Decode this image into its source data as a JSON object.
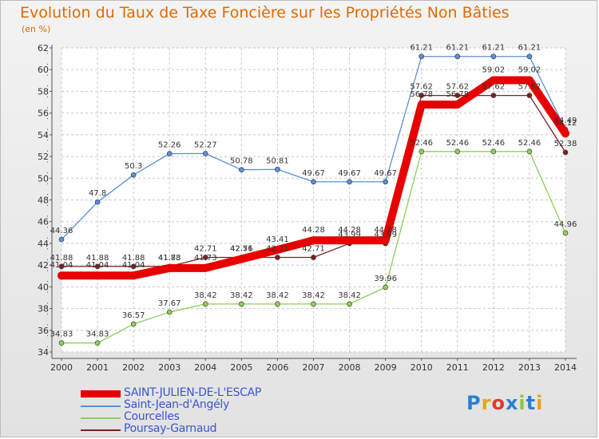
{
  "header": {
    "title": "Evolution du Taux de Taxe Foncière sur les Propriétés Non Bâties",
    "subtitle": "(en %)"
  },
  "chart_data": {
    "type": "line",
    "title": "Evolution du Taux de Taxe Foncière sur les Propriétés Non Bâties",
    "ylabel": "(en %)",
    "xlabel": "",
    "ylim": [
      34,
      62
    ],
    "yticks": [
      34,
      36,
      38,
      40,
      42,
      44,
      46,
      48,
      50,
      52,
      54,
      56,
      58,
      60,
      62
    ],
    "x": [
      "2000",
      "2001",
      "2002",
      "2003",
      "2004",
      "2005",
      "2006",
      "2007",
      "2008",
      "2009",
      "2010",
      "2011",
      "2012",
      "2013",
      "2014"
    ],
    "grid": true,
    "series": [
      {
        "name": "SAINT-JULIEN-DE-L'ESCAP",
        "color": "#e80000",
        "values": [
          41.04,
          41.04,
          41.04,
          41.73,
          41.73,
          42.56,
          43.41,
          44.28,
          44.28,
          44.28,
          56.78,
          56.78,
          59.02,
          59.02,
          54.12
        ],
        "labels": [
          "41.04",
          "41.04",
          "41.04",
          "41.73",
          "41.73",
          "42.56",
          "43.41",
          "44.28",
          "44.28",
          "44.28",
          "56.78",
          "56.78",
          "59.02",
          "59.02",
          "54.12"
        ]
      },
      {
        "name": "Saint-Jean-d'Angély",
        "color": "#5b8fd6",
        "values": [
          44.36,
          47.8,
          50.3,
          52.26,
          52.27,
          50.78,
          50.81,
          49.67,
          49.67,
          49.67,
          61.21,
          61.21,
          61.21,
          61.21,
          54.49
        ],
        "labels": [
          "44.36",
          "47.8",
          "50.3",
          "52.26",
          "52.27",
          "50.78",
          "50.81",
          "49.67",
          "49.67",
          "49.67",
          "61.21",
          "61.21",
          "61.21",
          "61.21",
          "54.49"
        ]
      },
      {
        "name": "Courcelles",
        "color": "#8ccf5a",
        "values": [
          34.83,
          34.83,
          36.57,
          37.67,
          38.42,
          38.42,
          38.42,
          38.42,
          38.42,
          39.96,
          52.46,
          52.46,
          52.46,
          52.46,
          44.96
        ],
        "labels": [
          "34.83",
          "34.83",
          "36.57",
          "37.67",
          "38.42",
          "38.42",
          "38.42",
          "38.42",
          "38.42",
          "39.96",
          "52.46",
          "52.46",
          "52.46",
          "52.46",
          "44.96"
        ]
      },
      {
        "name": "Poursay-Garnaud",
        "color": "#7a2222",
        "values": [
          41.88,
          41.88,
          41.88,
          41.88,
          42.71,
          42.71,
          42.71,
          42.71,
          43.99,
          43.99,
          57.62,
          57.62,
          57.62,
          57.62,
          52.38
        ],
        "labels": [
          "41.88",
          "41.88",
          "41.88",
          "41.88",
          "42.71",
          "42.71",
          "42.71",
          "42.71",
          "43.99",
          "43.99",
          "57.62",
          "57.62",
          "57.62",
          "57.62",
          "52.38"
        ]
      }
    ]
  },
  "legend": [
    {
      "label": "SAINT-JULIEN-DE-L'ESCAP",
      "color": "#e80000"
    },
    {
      "label": "Saint-Jean-d'Angély",
      "color": "#5b8fd6"
    },
    {
      "label": "Courcelles",
      "color": "#8ccf5a"
    },
    {
      "label": "Poursay-Garnaud",
      "color": "#7a2222"
    }
  ],
  "logo": {
    "text": "Proxiti",
    "colors": [
      "#2a7fd4",
      "#e8a21a",
      "#e03a2b",
      "#2a7fd4",
      "#8bc640",
      "#2a7fd4",
      "#e8a21a"
    ]
  }
}
